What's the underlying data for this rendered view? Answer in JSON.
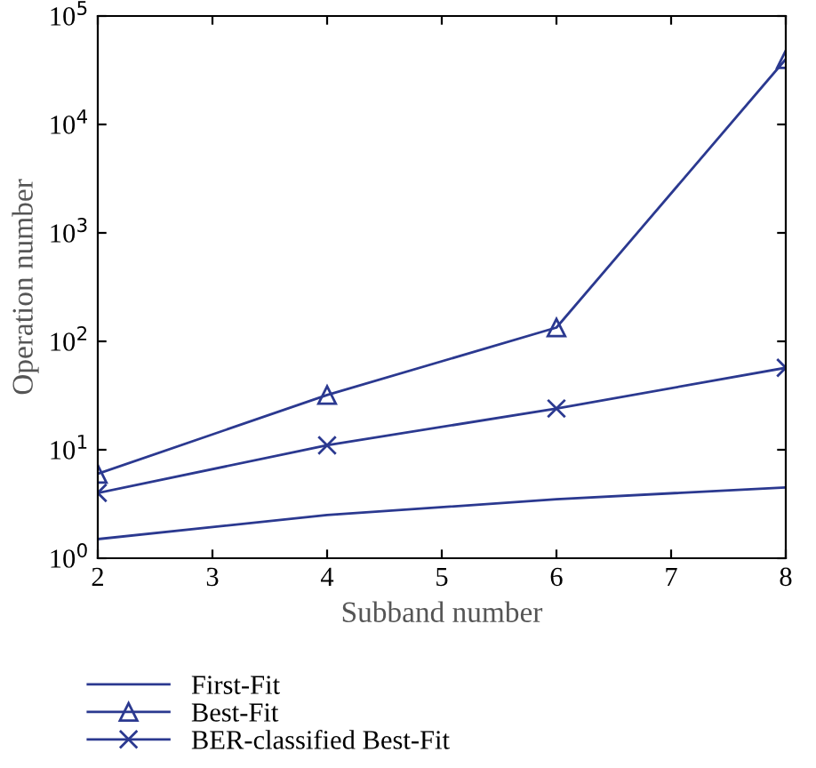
{
  "chart_data": {
    "type": "line",
    "xlabel": "Subband number",
    "ylabel": "Operation number",
    "x": [
      2,
      4,
      6,
      8
    ],
    "series": [
      {
        "name": "First-Fit",
        "color": "#2b3990",
        "values": [
          1.5,
          2.5,
          3.5,
          4.5
        ],
        "marker": "none"
      },
      {
        "name": "Best-Fit",
        "color": "#2b3990",
        "values": [
          6,
          32,
          134,
          40000
        ],
        "marker": "triangle"
      },
      {
        "name": "BER-classified Best-Fit",
        "color": "#2b3990",
        "values": [
          4,
          11,
          24,
          57
        ],
        "marker": "cross"
      }
    ],
    "log": "y",
    "xlim": [
      2,
      8
    ],
    "xticks": [
      2,
      3,
      4,
      5,
      6,
      7,
      8
    ],
    "ylim": [
      1,
      100000
    ],
    "yticks": [
      {
        "value": 1,
        "label": "10$^{0}$"
      },
      {
        "value": 10,
        "label": "10$^{1}$"
      },
      {
        "value": 100,
        "label": "10$^{2}$"
      },
      {
        "value": 1000,
        "label": "10$^{3}$"
      },
      {
        "value": 10000,
        "label": "10$^{4}$"
      },
      {
        "value": 100000,
        "label": "10$^{5}$"
      }
    ],
    "grid": false,
    "legend": "bottom",
    "line_style": "solid"
  }
}
